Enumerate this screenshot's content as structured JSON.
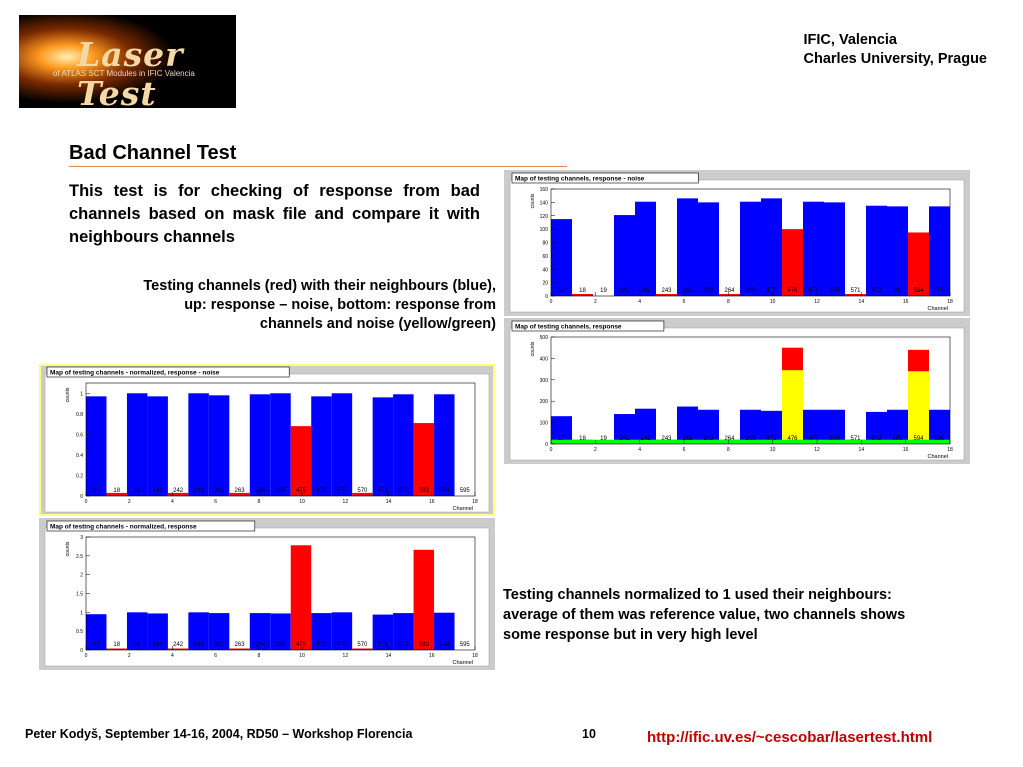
{
  "logo": {
    "title": "Laser Test",
    "subtitle": "of ATLAS SCT Modules in IFIC Valencia"
  },
  "header": {
    "line1": "IFIC, Valencia",
    "line2": "Charles University, Prague"
  },
  "slide": {
    "title": "Bad Channel Test",
    "intro": "This test is for checking of response from bad channels based on mask file and compare it with neighbours channels",
    "caption_testing_lines": [
      "Testing channels (red) with their neighbours (blue),",
      "up: response – noise, bottom: response from",
      "channels and noise (yellow/green)"
    ],
    "caption_normalized": "Testing channels normalized to 1 used their neighbours: average of them was reference value, two channels shows some response but in very high level"
  },
  "footer": {
    "author": "Peter Kodyš, September 14-16, 2004, RD50 – Workshop Florencia",
    "page": "10",
    "link": "http://ific.uv.es/~cescobar/lasertest.html"
  },
  "colors": {
    "blue": "#0000ff",
    "red": "#ff0000",
    "yellow": "#ffff00",
    "green": "#00ff00",
    "frame": "#cccccc",
    "highlight": "#ffff80"
  },
  "chart_data": [
    {
      "id": "response-noise",
      "type": "bar",
      "title": "Map of testing channels, response - noise",
      "ylabel": "counts",
      "xlabel": "Channel",
      "xlim": [
        0,
        18
      ],
      "ylim": [
        0,
        160
      ],
      "yticks": [
        0,
        20,
        40,
        60,
        80,
        100,
        120,
        140,
        160
      ],
      "xticks": [
        0,
        2,
        4,
        6,
        8,
        10,
        12,
        14,
        16,
        18
      ],
      "bar_labels": [
        "17",
        "18",
        "19",
        "241",
        "242",
        "243",
        "262",
        "263",
        "264",
        "265",
        "475",
        "476",
        "477",
        "570",
        "571",
        "572",
        "593",
        "594",
        "595"
      ],
      "series": [
        {
          "name": "",
          "color": "blue",
          "values": [
            115,
            0,
            0,
            121,
            141,
            0,
            146,
            140,
            0,
            141,
            146,
            0,
            141,
            140,
            0,
            135,
            134,
            0,
            134
          ]
        },
        {
          "name": "",
          "color": "red",
          "values": [
            0,
            3,
            0,
            0,
            0,
            3,
            0,
            0,
            3,
            0,
            0,
            100,
            0,
            0,
            3,
            0,
            0,
            95,
            0
          ]
        }
      ]
    },
    {
      "id": "response",
      "type": "bar",
      "title": "Map of testing channels, response",
      "ylabel": "counts",
      "xlabel": "Channel",
      "xlim": [
        0,
        18
      ],
      "ylim": [
        0,
        500
      ],
      "yticks": [
        0,
        100,
        200,
        300,
        400,
        500
      ],
      "xticks": [
        0,
        2,
        4,
        6,
        8,
        10,
        12,
        14,
        16,
        18
      ],
      "bar_labels": [
        "17",
        "18",
        "19",
        "241",
        "242",
        "243",
        "262",
        "263",
        "264",
        "265",
        "475",
        "476",
        "477",
        "570",
        "571",
        "572",
        "593",
        "594",
        "595"
      ],
      "series": [
        {
          "name": "",
          "color": "blue",
          "values": [
            130,
            0,
            0,
            140,
            165,
            0,
            175,
            160,
            0,
            160,
            155,
            0,
            160,
            160,
            0,
            150,
            160,
            0,
            160
          ]
        },
        {
          "name": "",
          "color": "red",
          "values": [
            0,
            20,
            0,
            0,
            0,
            20,
            0,
            0,
            20,
            0,
            0,
            450,
            0,
            0,
            20,
            0,
            0,
            440,
            0
          ]
        },
        {
          "name": "",
          "color": "yellow",
          "values": [
            0,
            0,
            0,
            0,
            0,
            0,
            0,
            0,
            0,
            0,
            0,
            345,
            0,
            0,
            0,
            0,
            0,
            340,
            0
          ]
        },
        {
          "name": "",
          "color": "green",
          "values": [
            20,
            20,
            20,
            20,
            20,
            20,
            20,
            20,
            20,
            20,
            20,
            20,
            20,
            20,
            20,
            20,
            20,
            20,
            20
          ]
        }
      ]
    },
    {
      "id": "normalized-response-noise",
      "type": "bar",
      "title": "Map of testing channels - normalized, response - noise",
      "ylabel": "counts",
      "xlabel": "Channel",
      "xlim": [
        0,
        18
      ],
      "ylim": [
        0,
        1.1
      ],
      "yticks": [
        0,
        0.2,
        0.4,
        0.6,
        0.8,
        1
      ],
      "xticks": [
        0,
        2,
        4,
        6,
        8,
        10,
        12,
        14,
        16,
        18
      ],
      "bar_labels": [
        "17",
        "18",
        "19",
        "241",
        "242",
        "243",
        "262",
        "263",
        "264",
        "265",
        "475",
        "476",
        "477",
        "570",
        "571",
        "572",
        "593",
        "594",
        "595"
      ],
      "series": [
        {
          "name": "",
          "color": "blue",
          "values": [
            0.97,
            0,
            1.0,
            0.97,
            0,
            1.0,
            0.98,
            0,
            0.99,
            1.0,
            0,
            0.97,
            1.0,
            0,
            0.96,
            0.99,
            0,
            0.99,
            0
          ]
        },
        {
          "name": "",
          "color": "red",
          "values": [
            0,
            0.03,
            0,
            0,
            0.03,
            0,
            0,
            0.03,
            0,
            0,
            0.68,
            0,
            0,
            0.03,
            0,
            0,
            0.71,
            0,
            0
          ]
        }
      ]
    },
    {
      "id": "normalized-response",
      "type": "bar",
      "title": "Map of testing channels - normalized, response",
      "ylabel": "counts",
      "xlabel": "Channel",
      "xlim": [
        0,
        18
      ],
      "ylim": [
        0,
        3
      ],
      "yticks": [
        0,
        0.5,
        1,
        1.5,
        2,
        2.5,
        3
      ],
      "xticks": [
        0,
        2,
        4,
        6,
        8,
        10,
        12,
        14,
        16,
        18
      ],
      "bar_labels": [
        "17",
        "18",
        "19",
        "241",
        "242",
        "243",
        "262",
        "263",
        "264",
        "265",
        "475",
        "476",
        "477",
        "570",
        "571",
        "572",
        "593",
        "594",
        "595"
      ],
      "series": [
        {
          "name": "",
          "color": "blue",
          "values": [
            0.95,
            0,
            1.0,
            0.97,
            0,
            1.0,
            0.98,
            0,
            0.98,
            0.97,
            0,
            0.98,
            1.0,
            0,
            0.94,
            0.98,
            0,
            0.99,
            0
          ]
        },
        {
          "name": "",
          "color": "red",
          "values": [
            0,
            0.04,
            0,
            0,
            0.04,
            0,
            0,
            0.04,
            0,
            0,
            2.78,
            0,
            0,
            0.04,
            0,
            0,
            2.66,
            0,
            0
          ]
        }
      ]
    }
  ]
}
